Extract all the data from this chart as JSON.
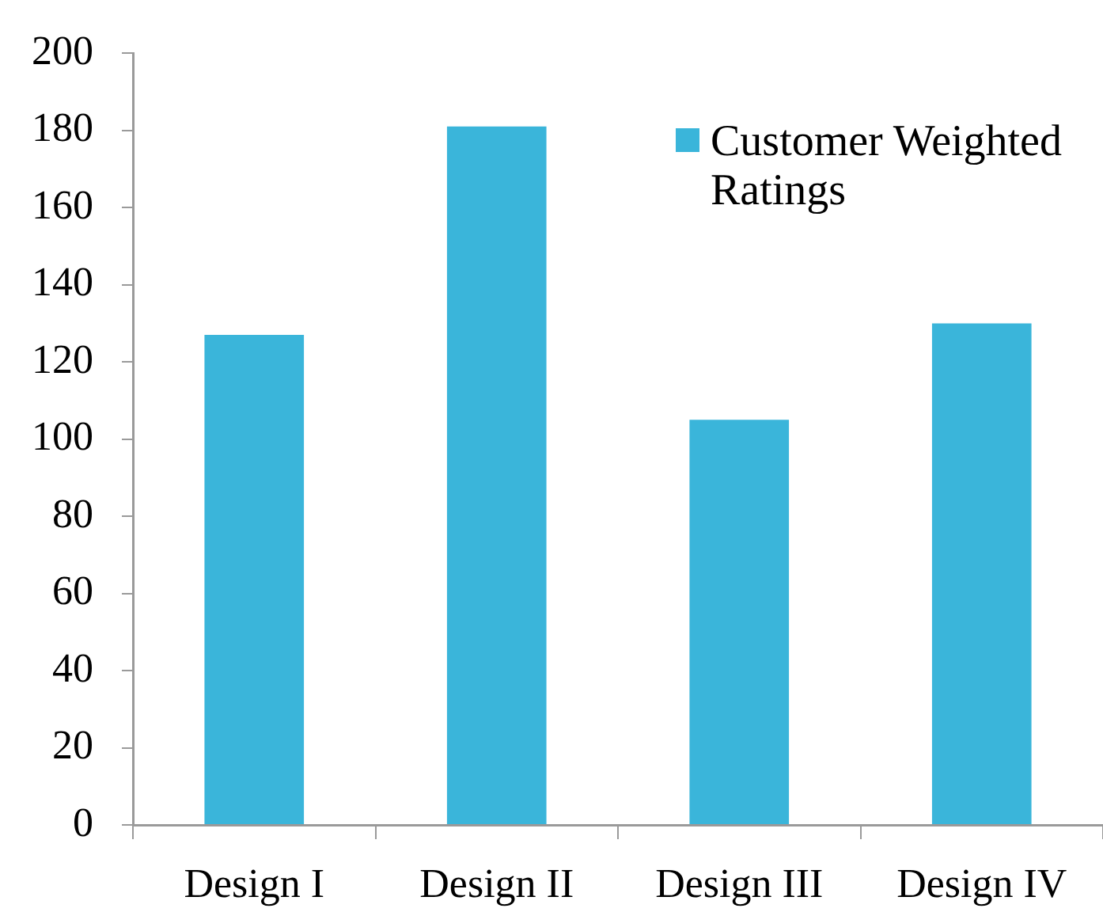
{
  "chart_data": {
    "type": "bar",
    "categories": [
      "Design I",
      "Design II",
      "Design III",
      "Design IV"
    ],
    "series": [
      {
        "name": "Customer Weighted Ratings",
        "color": "#3ab5da",
        "values": [
          127,
          181,
          105,
          130
        ]
      }
    ],
    "ylim": [
      0,
      200
    ],
    "yticks": [
      0,
      20,
      40,
      60,
      80,
      100,
      120,
      140,
      160,
      180,
      200
    ],
    "grid": false,
    "legend": "top right"
  }
}
